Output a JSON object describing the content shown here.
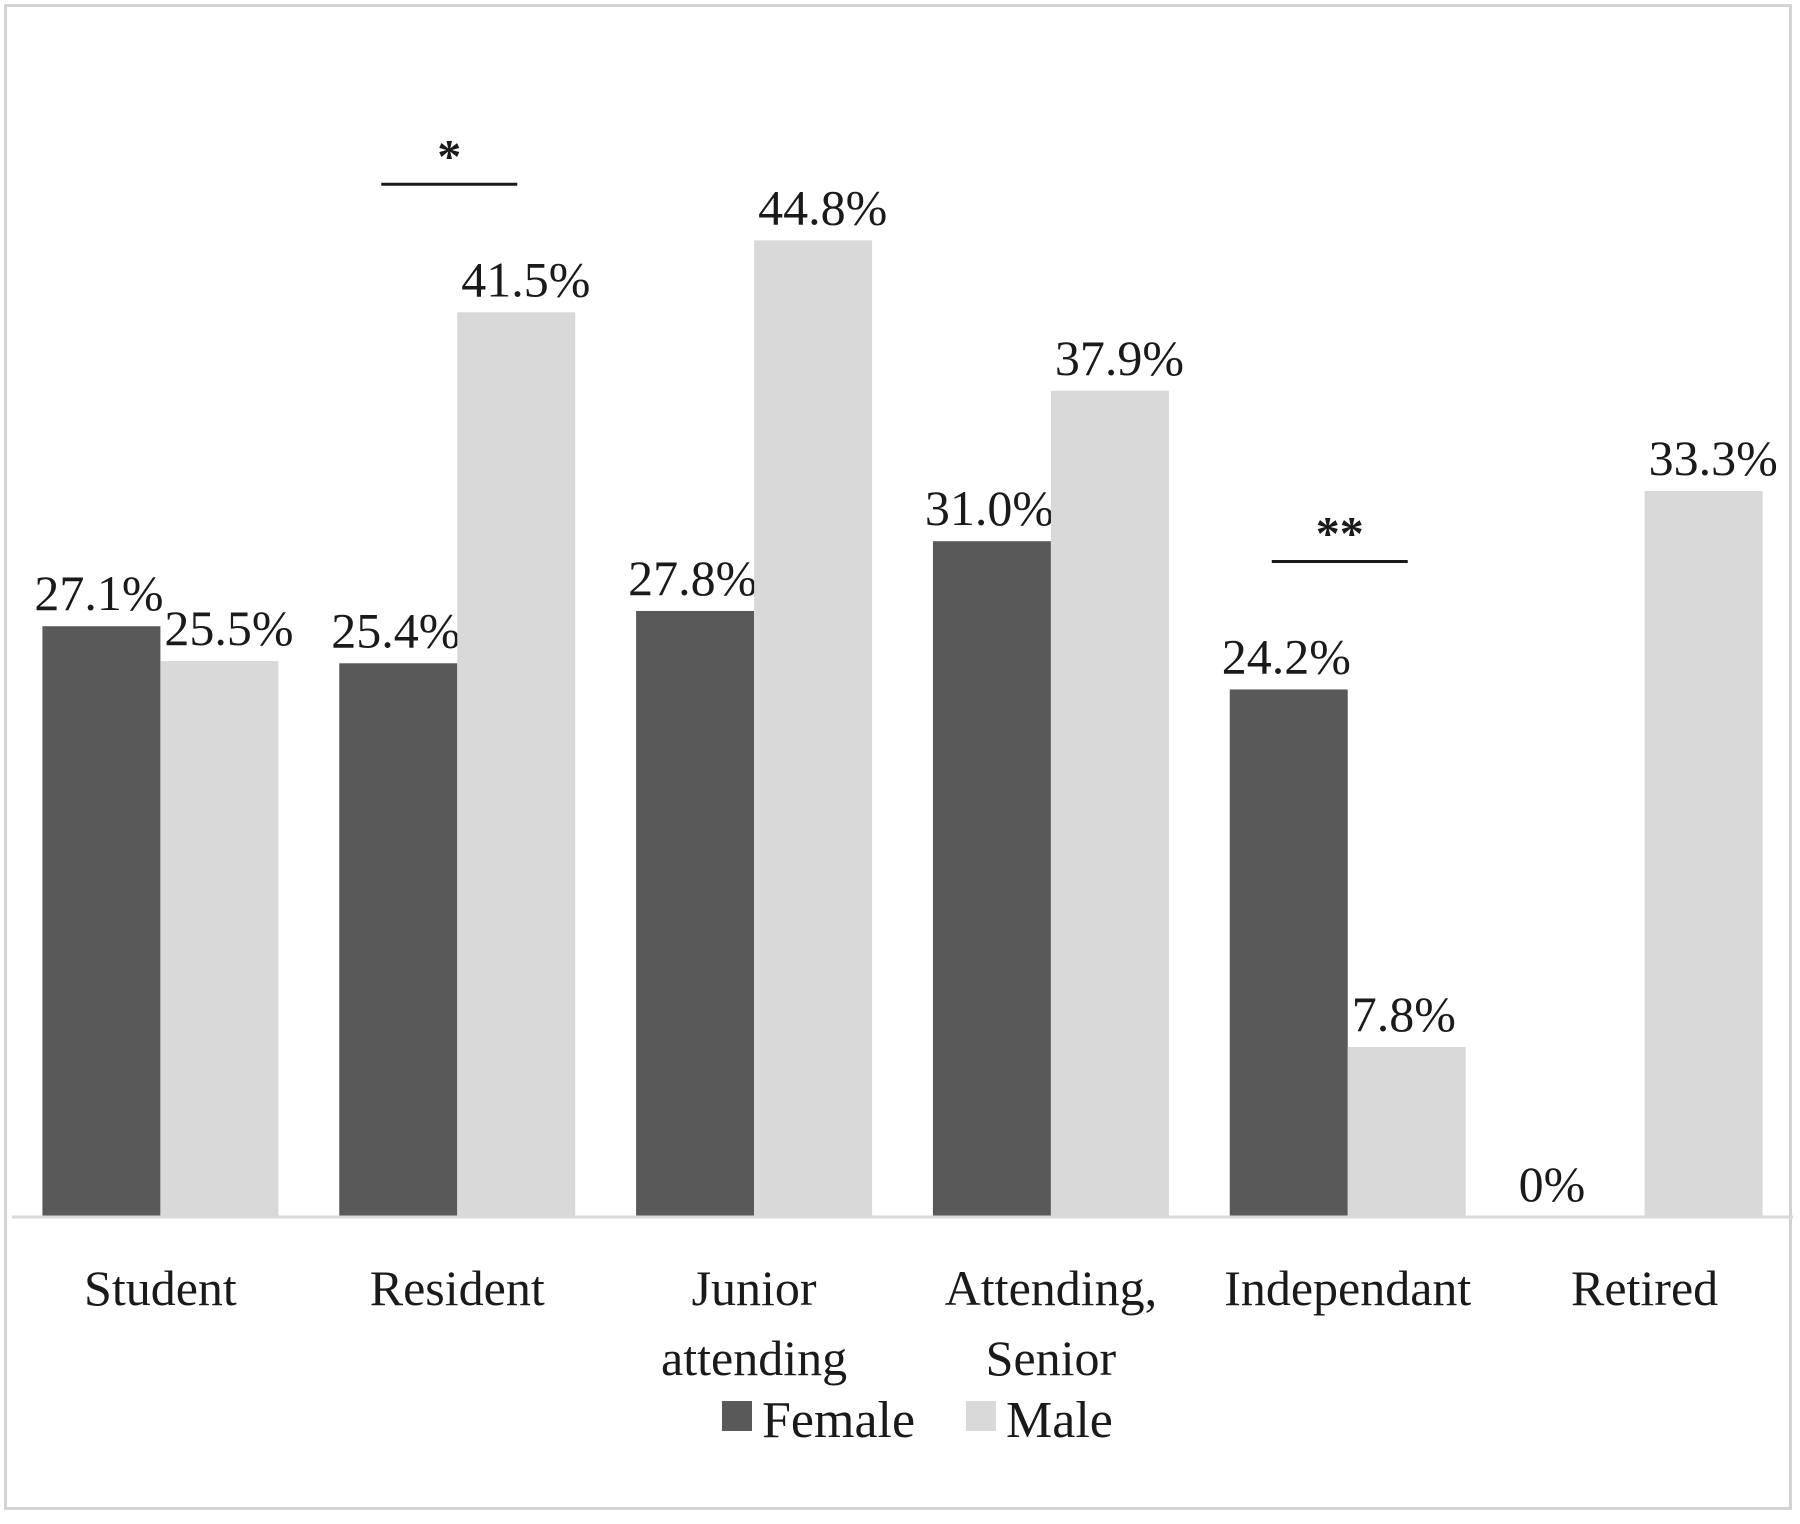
{
  "chart_data": {
    "type": "bar",
    "categories": [
      [
        "Student"
      ],
      [
        "Resident"
      ],
      [
        "Junior",
        "attending"
      ],
      [
        "Attending,",
        "Senior"
      ],
      [
        "Independant"
      ],
      [
        "Retired"
      ]
    ],
    "series": [
      {
        "name": "Female",
        "color": "#595959",
        "values": [
          27.1,
          25.4,
          27.8,
          31.0,
          24.2,
          0
        ],
        "labels": [
          "27.1%",
          "25.4%",
          "27.8%",
          "31.0%",
          "24.2%",
          "0%"
        ]
      },
      {
        "name": "Male",
        "color": "#d9d9d9",
        "values": [
          25.5,
          41.5,
          44.8,
          37.9,
          7.8,
          33.3
        ],
        "labels": [
          "25.5%",
          "41.5%",
          "44.8%",
          "37.9%",
          "7.8%",
          "33.3%"
        ]
      }
    ],
    "significance": [
      {
        "category_index": 1,
        "marker": "*"
      },
      {
        "category_index": 4,
        "marker": "**"
      }
    ],
    "ylim": [
      0,
      50
    ],
    "axis_color": "#d9d9d9",
    "title": "",
    "xlabel": "",
    "ylabel": "",
    "grid": false,
    "legend_position": "bottom"
  }
}
